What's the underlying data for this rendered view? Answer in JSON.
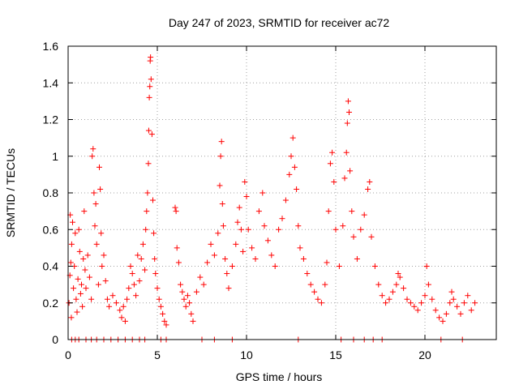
{
  "chart_data": {
    "type": "scatter",
    "title": "Day 247 of 2023, SRMTID for receiver ac72",
    "xlabel": "GPS time / hours",
    "ylabel": "SRMTID / TECUs",
    "xlim": [
      0,
      24
    ],
    "ylim": [
      0,
      1.6
    ],
    "xticks": [
      0,
      5,
      10,
      15,
      20
    ],
    "xtick_labels": [
      "0",
      "5",
      "10",
      "15",
      "20"
    ],
    "yticks": [
      0,
      0.2,
      0.4,
      0.6,
      0.8,
      1,
      1.2,
      1.4,
      1.6
    ],
    "ytick_labels": [
      "0",
      "0.2",
      "0.4",
      "0.6",
      "0.8",
      "1",
      "1.2",
      "1.4",
      "1.6"
    ],
    "grid": true,
    "marker": "+",
    "color": "#ff0000",
    "series": [
      {
        "name": "SRMTID",
        "points": [
          [
            0.05,
            0.2
          ],
          [
            0.1,
            0.35
          ],
          [
            0.12,
            0.68
          ],
          [
            0.15,
            0.42
          ],
          [
            0.18,
            0.12
          ],
          [
            0.2,
            0.52
          ],
          [
            0.25,
            0.64
          ],
          [
            0.3,
            0.28
          ],
          [
            0.35,
            0.4
          ],
          [
            0.4,
            0.58
          ],
          [
            0.45,
            0.22
          ],
          [
            0.5,
            0.15
          ],
          [
            0.55,
            0.33
          ],
          [
            0.6,
            0.6
          ],
          [
            0.65,
            0.48
          ],
          [
            0.7,
            0.25
          ],
          [
            0.75,
            0.3
          ],
          [
            0.8,
            0.18
          ],
          [
            0.85,
            0.44
          ],
          [
            0.9,
            0.7
          ],
          [
            0.95,
            0.38
          ],
          [
            1.0,
            0.28
          ],
          [
            1.1,
            0.46
          ],
          [
            1.2,
            0.34
          ],
          [
            1.3,
            0.22
          ],
          [
            1.35,
            1.0
          ],
          [
            1.4,
            1.04
          ],
          [
            1.45,
            0.8
          ],
          [
            1.5,
            0.62
          ],
          [
            1.55,
            0.74
          ],
          [
            1.6,
            0.52
          ],
          [
            1.7,
            0.3
          ],
          [
            1.75,
            0.94
          ],
          [
            1.8,
            0.82
          ],
          [
            1.85,
            0.58
          ],
          [
            1.9,
            0.4
          ],
          [
            2.0,
            0.46
          ],
          [
            2.1,
            0.32
          ],
          [
            2.2,
            0.22
          ],
          [
            2.3,
            0.18
          ],
          [
            2.5,
            0.24
          ],
          [
            2.7,
            0.2
          ],
          [
            2.9,
            0.16
          ],
          [
            3.0,
            0.12
          ],
          [
            3.1,
            0.18
          ],
          [
            3.2,
            0.1
          ],
          [
            3.3,
            0.22
          ],
          [
            3.4,
            0.28
          ],
          [
            3.5,
            0.4
          ],
          [
            3.6,
            0.36
          ],
          [
            3.7,
            0.3
          ],
          [
            3.8,
            0.24
          ],
          [
            3.9,
            0.46
          ],
          [
            4.0,
            0.32
          ],
          [
            4.1,
            0.44
          ],
          [
            4.2,
            0.52
          ],
          [
            4.3,
            0.38
          ],
          [
            4.35,
            0.6
          ],
          [
            4.4,
            0.7
          ],
          [
            4.45,
            0.8
          ],
          [
            4.5,
            0.96
          ],
          [
            4.52,
            1.14
          ],
          [
            4.55,
            1.32
          ],
          [
            4.58,
            1.38
          ],
          [
            4.6,
            1.52
          ],
          [
            4.62,
            1.54
          ],
          [
            4.65,
            1.42
          ],
          [
            4.7,
            1.12
          ],
          [
            4.75,
            0.76
          ],
          [
            4.8,
            0.58
          ],
          [
            4.85,
            0.44
          ],
          [
            4.9,
            0.36
          ],
          [
            5.0,
            0.28
          ],
          [
            5.1,
            0.22
          ],
          [
            5.2,
            0.18
          ],
          [
            5.3,
            0.14
          ],
          [
            5.4,
            0.1
          ],
          [
            5.5,
            0.08
          ],
          [
            6.0,
            0.72
          ],
          [
            6.05,
            0.7
          ],
          [
            6.1,
            0.5
          ],
          [
            6.2,
            0.42
          ],
          [
            6.3,
            0.3
          ],
          [
            6.4,
            0.26
          ],
          [
            6.5,
            0.22
          ],
          [
            6.6,
            0.18
          ],
          [
            6.7,
            0.24
          ],
          [
            6.8,
            0.2
          ],
          [
            6.9,
            0.14
          ],
          [
            7.0,
            0.1
          ],
          [
            7.2,
            0.26
          ],
          [
            7.4,
            0.34
          ],
          [
            7.6,
            0.3
          ],
          [
            7.8,
            0.42
          ],
          [
            8.0,
            0.52
          ],
          [
            8.2,
            0.46
          ],
          [
            8.4,
            0.58
          ],
          [
            8.5,
            0.84
          ],
          [
            8.55,
            1.0
          ],
          [
            8.6,
            1.08
          ],
          [
            8.65,
            0.74
          ],
          [
            8.7,
            0.62
          ],
          [
            8.8,
            0.44
          ],
          [
            8.9,
            0.36
          ],
          [
            9.0,
            0.28
          ],
          [
            9.2,
            0.4
          ],
          [
            9.4,
            0.52
          ],
          [
            9.5,
            0.64
          ],
          [
            9.6,
            0.72
          ],
          [
            9.7,
            0.6
          ],
          [
            9.8,
            0.48
          ],
          [
            9.9,
            0.86
          ],
          [
            10.0,
            0.78
          ],
          [
            10.1,
            0.6
          ],
          [
            10.3,
            0.5
          ],
          [
            10.5,
            0.44
          ],
          [
            10.7,
            0.7
          ],
          [
            10.9,
            0.8
          ],
          [
            11.0,
            0.62
          ],
          [
            11.2,
            0.54
          ],
          [
            11.4,
            0.46
          ],
          [
            11.6,
            0.4
          ],
          [
            11.8,
            0.6
          ],
          [
            12.0,
            0.66
          ],
          [
            12.2,
            0.76
          ],
          [
            12.4,
            0.9
          ],
          [
            12.5,
            1.0
          ],
          [
            12.6,
            1.1
          ],
          [
            12.7,
            0.94
          ],
          [
            12.8,
            0.82
          ],
          [
            12.9,
            0.62
          ],
          [
            13.0,
            0.5
          ],
          [
            13.2,
            0.44
          ],
          [
            13.4,
            0.36
          ],
          [
            13.6,
            0.3
          ],
          [
            13.8,
            0.26
          ],
          [
            14.0,
            0.22
          ],
          [
            14.2,
            0.2
          ],
          [
            14.4,
            0.3
          ],
          [
            14.5,
            0.42
          ],
          [
            14.6,
            0.7
          ],
          [
            14.7,
            0.96
          ],
          [
            14.8,
            1.02
          ],
          [
            14.9,
            0.86
          ],
          [
            15.0,
            0.6
          ],
          [
            15.2,
            0.4
          ],
          [
            15.4,
            0.62
          ],
          [
            15.5,
            0.88
          ],
          [
            15.6,
            1.02
          ],
          [
            15.65,
            1.18
          ],
          [
            15.7,
            1.3
          ],
          [
            15.75,
            1.24
          ],
          [
            15.8,
            0.92
          ],
          [
            15.9,
            0.7
          ],
          [
            16.0,
            0.56
          ],
          [
            16.2,
            0.44
          ],
          [
            16.4,
            0.6
          ],
          [
            16.6,
            0.68
          ],
          [
            16.8,
            0.82
          ],
          [
            16.9,
            0.86
          ],
          [
            17.0,
            0.56
          ],
          [
            17.2,
            0.4
          ],
          [
            17.4,
            0.3
          ],
          [
            17.6,
            0.24
          ],
          [
            17.8,
            0.2
          ],
          [
            18.0,
            0.22
          ],
          [
            18.2,
            0.26
          ],
          [
            18.4,
            0.3
          ],
          [
            18.5,
            0.36
          ],
          [
            18.6,
            0.34
          ],
          [
            18.8,
            0.28
          ],
          [
            19.0,
            0.22
          ],
          [
            19.2,
            0.2
          ],
          [
            19.4,
            0.18
          ],
          [
            19.6,
            0.16
          ],
          [
            19.8,
            0.2
          ],
          [
            20.0,
            0.24
          ],
          [
            20.1,
            0.4
          ],
          [
            20.2,
            0.3
          ],
          [
            20.4,
            0.22
          ],
          [
            20.6,
            0.16
          ],
          [
            20.8,
            0.12
          ],
          [
            21.0,
            0.1
          ],
          [
            21.2,
            0.14
          ],
          [
            21.4,
            0.2
          ],
          [
            21.5,
            0.26
          ],
          [
            21.6,
            0.22
          ],
          [
            21.8,
            0.18
          ],
          [
            22.0,
            0.14
          ],
          [
            22.2,
            0.2
          ],
          [
            22.4,
            0.24
          ],
          [
            22.6,
            0.16
          ],
          [
            22.8,
            0.2
          ],
          [
            0.2,
            0.0
          ],
          [
            0.4,
            0.0
          ],
          [
            0.6,
            0.0
          ],
          [
            1.0,
            0.0
          ],
          [
            1.3,
            0.0
          ],
          [
            1.6,
            0.0
          ],
          [
            2.0,
            0.0
          ],
          [
            2.4,
            0.0
          ],
          [
            2.8,
            0.0
          ],
          [
            3.2,
            0.0
          ],
          [
            3.6,
            0.0
          ],
          [
            4.0,
            0.0
          ],
          [
            4.3,
            0.0
          ],
          [
            5.2,
            0.0
          ],
          [
            5.5,
            0.0
          ],
          [
            7.5,
            0.0
          ],
          [
            8.2,
            0.0
          ],
          [
            9.2,
            0.0
          ],
          [
            12.9,
            0.0
          ],
          [
            15.3,
            0.0
          ],
          [
            16.0,
            0.0
          ],
          [
            16.6,
            0.0
          ],
          [
            17.1,
            0.0
          ],
          [
            17.6,
            0.0
          ],
          [
            20.9,
            0.0
          ],
          [
            22.1,
            0.0
          ]
        ]
      }
    ]
  }
}
